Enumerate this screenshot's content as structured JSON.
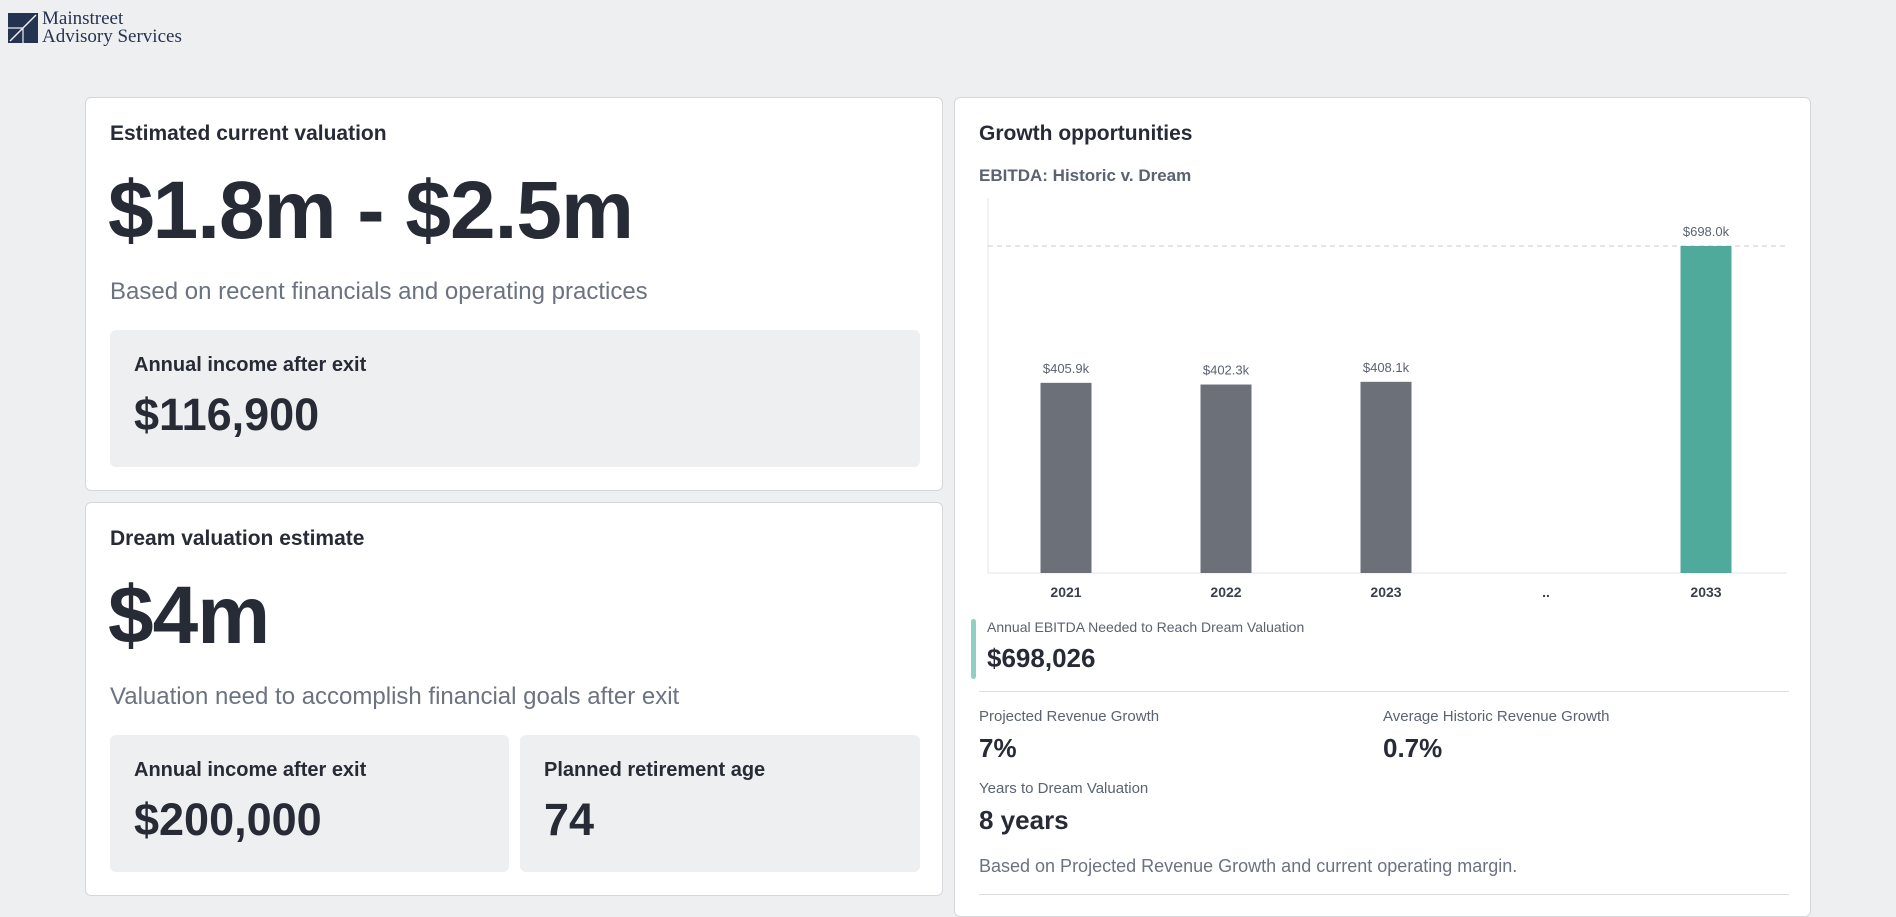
{
  "brand": {
    "line1": "Mainstreet",
    "line2": "Advisory Services"
  },
  "current": {
    "title": "Estimated current valuation",
    "range": "$1.8m - $2.5m",
    "subtitle": "Based on recent financials and operating practices",
    "income_label": "Annual income after exit",
    "income_value": "$116,900"
  },
  "dream": {
    "title": "Dream valuation estimate",
    "value": "$4m",
    "subtitle": "Valuation need to accomplish financial goals after exit",
    "income_label": "Annual income after exit",
    "income_value": "$200,000",
    "age_label": "Planned retirement age",
    "age_value": "74"
  },
  "growth": {
    "title": "Growth opportunities",
    "chart_title": "EBITDA: Historic v. Dream",
    "ebitda_label": "Annual EBITDA Needed to Reach Dream Valuation",
    "ebitda_value": "$698,026",
    "proj_label": "Projected Revenue Growth",
    "proj_value": "7%",
    "hist_label": "Average Historic Revenue Growth",
    "hist_value": "0.7%",
    "years_label": "Years to Dream Valuation",
    "years_value": "8 years",
    "note": "Based on Projected Revenue Growth and current operating margin."
  },
  "chart_data": {
    "type": "bar",
    "title": "EBITDA: Historic v. Dream",
    "categories": [
      "2021",
      "2022",
      "2023",
      "..",
      "2033"
    ],
    "values": [
      405.9,
      402.3,
      408.1,
      null,
      698.0
    ],
    "labels": [
      "$405.9k",
      "$402.3k",
      "$408.1k",
      "",
      "$698.0k"
    ],
    "unit": "thousands USD",
    "reference_line": 698.0,
    "colors": {
      "historic": "#6b7079",
      "dream": "#4faa9b"
    }
  }
}
